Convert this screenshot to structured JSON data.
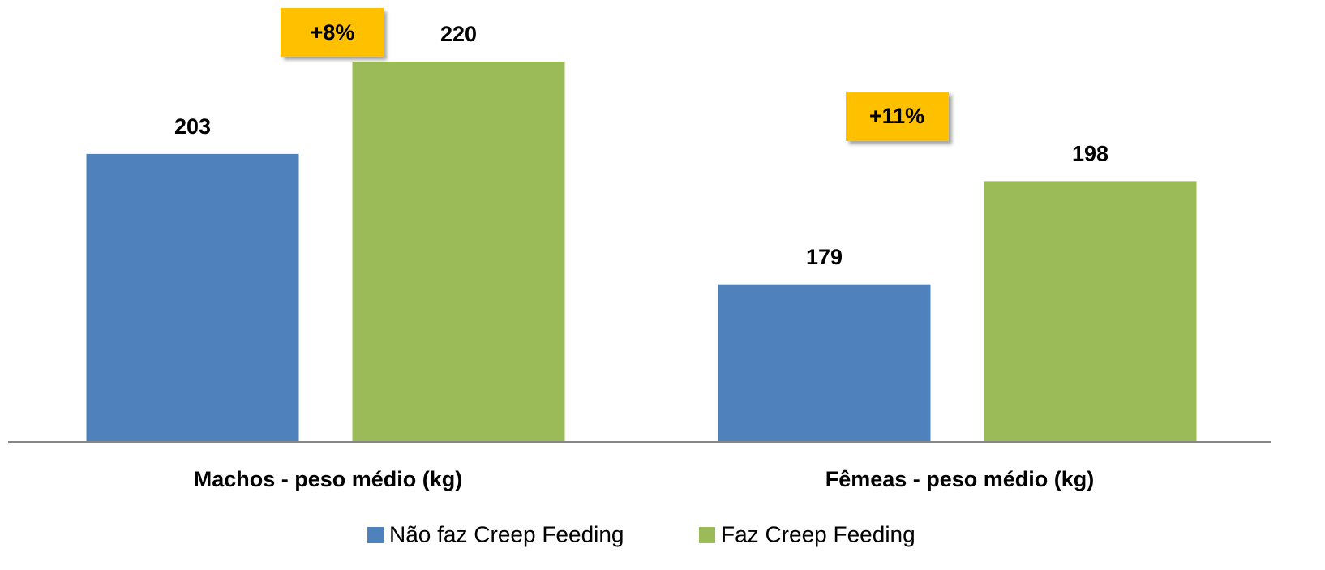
{
  "chart_data": {
    "type": "bar",
    "categories": [
      "Machos - peso médio (kg)",
      "Fêmeas - peso médio (kg)"
    ],
    "series": [
      {
        "name": "Não faz Creep Feeding",
        "color": "#4f81bd",
        "values": [
          203,
          179
        ]
      },
      {
        "name": "Faz Creep Feeding",
        "color": "#9bbb59",
        "values": [
          220,
          198
        ]
      }
    ],
    "ylim": [
      150,
      230
    ],
    "annotations": [
      "+8%",
      "+11%"
    ],
    "annotation_color": "#ffc000",
    "legend": "bottom"
  }
}
